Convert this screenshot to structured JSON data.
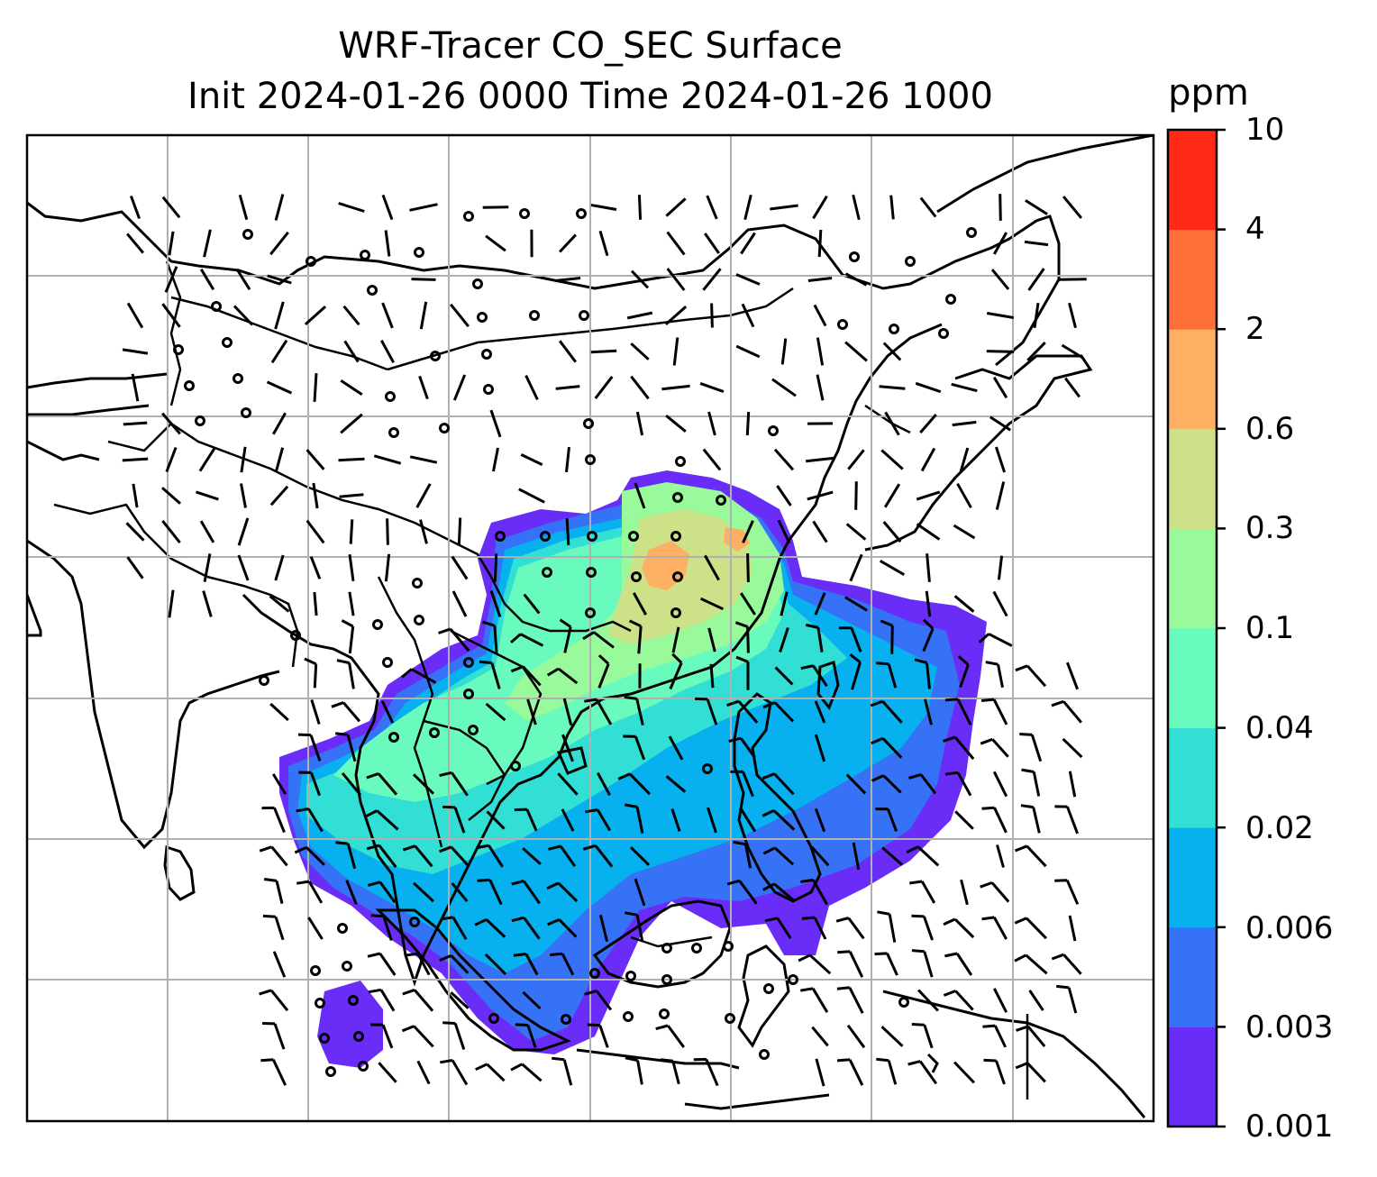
{
  "title": {
    "line1": "WRF-Tracer CO_SEC Surface",
    "line2": "Init 2024-01-26 0000 Time 2024-01-26 1000"
  },
  "colorbar": {
    "unit": "ppm",
    "ticks": [
      "0.001",
      "0.003",
      "0.006",
      "0.02",
      "0.04",
      "0.1",
      "0.3",
      "0.6",
      "2",
      "4",
      "10"
    ],
    "colors": [
      "#6a2cf7",
      "#3572f5",
      "#07b0ee",
      "#31dfd5",
      "#69fbbe",
      "#98fa9a",
      "#cde189",
      "#fdb063",
      "#fe6f3a",
      "#fe2a15"
    ]
  },
  "map": {
    "projection": "lat-lon",
    "gridlines": true,
    "layers": [
      "coastlines",
      "borders",
      "co-sec-concentration-fill",
      "wind-barbs"
    ]
  }
}
